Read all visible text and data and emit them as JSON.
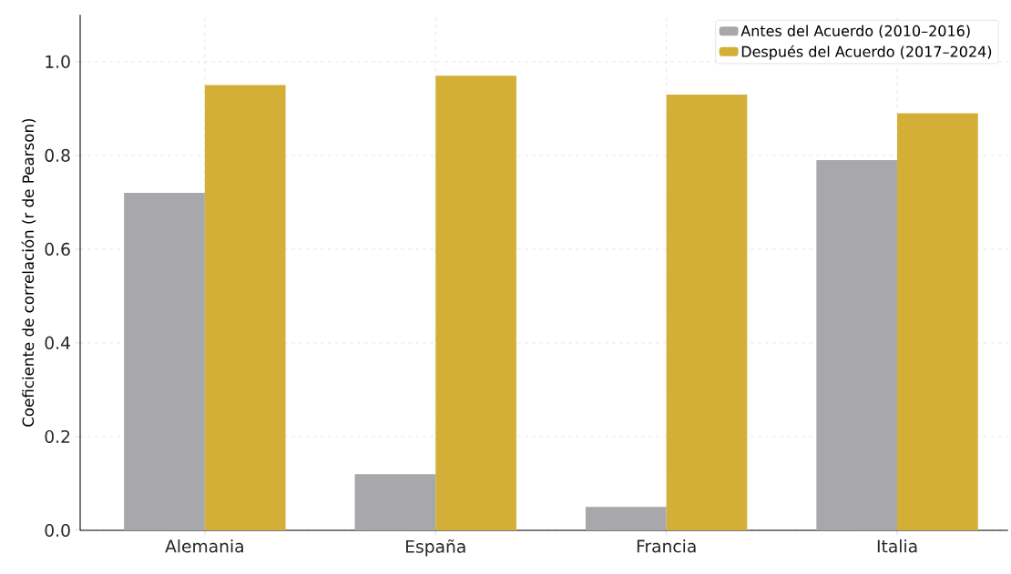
{
  "chart_data": {
    "type": "bar",
    "ylabel": "Coeficiente de correlación (r de Pearson)",
    "categories": [
      "Alemania",
      "España",
      "Francia",
      "Italia"
    ],
    "series": [
      {
        "name": "Antes del Acuerdo (2010–2016)",
        "color": "#a8a8ac",
        "values": [
          0.72,
          0.12,
          0.05,
          0.79
        ]
      },
      {
        "name": "Después del Acuerdo (2017–2024)",
        "color": "#d4af37",
        "values": [
          0.95,
          0.97,
          0.93,
          0.89
        ]
      }
    ],
    "ylim": [
      0,
      1.1
    ],
    "yticks": [
      {
        "value": 0,
        "label": "0.0"
      },
      {
        "value": 0.2,
        "label": "0.2"
      },
      {
        "value": 0.4,
        "label": "0.4"
      },
      {
        "value": 0.6,
        "label": "0.6"
      },
      {
        "value": 0.8,
        "label": "0.8"
      },
      {
        "value": 1,
        "label": "1.0"
      }
    ],
    "grid": true,
    "legend": "top right"
  }
}
